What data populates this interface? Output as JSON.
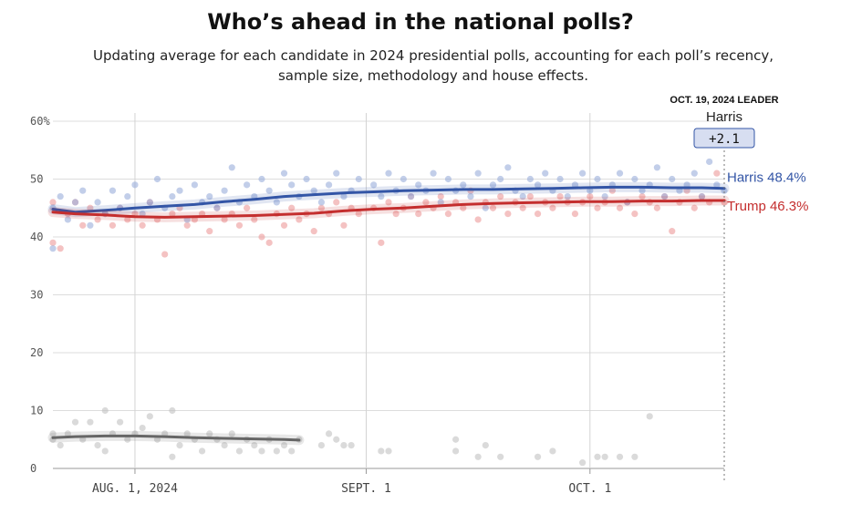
{
  "header": {
    "title": "Who’s ahead in the national polls?",
    "subtitle": "Updating average for each candidate in 2024 presidential polls, accounting for each poll’s recency, sample size, methodology and house effects."
  },
  "colors": {
    "harris": "#3355a6",
    "trump": "#c42e2e",
    "other": "#666666",
    "harris_dot": "#9aaedb",
    "trump_dot": "#ec9a9a",
    "other_dot": "#c2c2c2",
    "grid": "#dddddd",
    "badge_bg": "#d7def1",
    "badge_border": "#3355a6"
  },
  "leader": {
    "date_label": "OCT. 19, 2024 LEADER",
    "name": "Harris",
    "margin": "+2.1"
  },
  "chart_data": {
    "type": "line",
    "title": "Who’s ahead in the national polls?",
    "x_type": "date",
    "x_range": [
      "2024-07-21",
      "2024-10-19"
    ],
    "ylim": [
      0,
      60
    ],
    "y_ticks": [
      0,
      10,
      20,
      30,
      40,
      50,
      60
    ],
    "y_tick_labels": [
      "0",
      "10",
      "20",
      "30",
      "40",
      "50",
      "60%"
    ],
    "x_ticks": [
      {
        "date": "2024-08-01",
        "label": "AUG. 1, 2024"
      },
      {
        "date": "2024-09-01",
        "label": "SEPT. 1"
      },
      {
        "date": "2024-10-01",
        "label": "OCT. 1"
      }
    ],
    "grid": true,
    "legend": "end-labels",
    "series": [
      {
        "name": "Harris",
        "end_label": "Harris 48.4%",
        "color_key": "harris",
        "x": [
          "2024-07-21",
          "2024-07-24",
          "2024-07-28",
          "2024-08-01",
          "2024-08-05",
          "2024-08-09",
          "2024-08-13",
          "2024-08-17",
          "2024-08-21",
          "2024-08-25",
          "2024-08-29",
          "2024-09-02",
          "2024-09-06",
          "2024-09-10",
          "2024-09-14",
          "2024-09-18",
          "2024-09-22",
          "2024-09-26",
          "2024-09-30",
          "2024-10-04",
          "2024-10-08",
          "2024-10-12",
          "2024-10-16",
          "2024-10-19"
        ],
        "values": [
          44.8,
          44.3,
          44.6,
          45.0,
          45.3,
          45.6,
          46.1,
          46.5,
          47.0,
          47.3,
          47.6,
          47.8,
          48.0,
          48.1,
          48.2,
          48.2,
          48.3,
          48.4,
          48.5,
          48.6,
          48.6,
          48.5,
          48.5,
          48.4
        ]
      },
      {
        "name": "Trump",
        "end_label": "Trump 46.3%",
        "color_key": "trump",
        "x": [
          "2024-07-21",
          "2024-07-24",
          "2024-07-28",
          "2024-08-01",
          "2024-08-05",
          "2024-08-09",
          "2024-08-13",
          "2024-08-17",
          "2024-08-21",
          "2024-08-25",
          "2024-08-29",
          "2024-09-02",
          "2024-09-06",
          "2024-09-10",
          "2024-09-14",
          "2024-09-18",
          "2024-09-22",
          "2024-09-26",
          "2024-09-30",
          "2024-10-04",
          "2024-10-08",
          "2024-10-12",
          "2024-10-16",
          "2024-10-19"
        ],
        "values": [
          44.3,
          44.0,
          43.8,
          43.5,
          43.4,
          43.5,
          43.6,
          43.7,
          43.9,
          44.1,
          44.5,
          44.8,
          45.0,
          45.3,
          45.6,
          45.8,
          45.9,
          46.0,
          46.1,
          46.1,
          46.2,
          46.2,
          46.3,
          46.3
        ]
      },
      {
        "name": "Other",
        "color_key": "other",
        "x": [
          "2024-07-21",
          "2024-07-24",
          "2024-07-28",
          "2024-08-01",
          "2024-08-05",
          "2024-08-09",
          "2024-08-13",
          "2024-08-17",
          "2024-08-21",
          "2024-08-23"
        ],
        "values": [
          5.3,
          5.5,
          5.6,
          5.6,
          5.5,
          5.3,
          5.2,
          5.1,
          5.0,
          4.9
        ]
      }
    ],
    "polls": {
      "harris": [
        [
          "2024-07-21",
          45
        ],
        [
          "2024-07-21",
          38
        ],
        [
          "2024-07-22",
          47
        ],
        [
          "2024-07-23",
          43
        ],
        [
          "2024-07-24",
          46
        ],
        [
          "2024-07-25",
          48
        ],
        [
          "2024-07-26",
          42
        ],
        [
          "2024-07-27",
          46
        ],
        [
          "2024-07-28",
          44
        ],
        [
          "2024-07-29",
          48
        ],
        [
          "2024-07-30",
          45
        ],
        [
          "2024-07-31",
          47
        ],
        [
          "2024-08-01",
          49
        ],
        [
          "2024-08-02",
          44
        ],
        [
          "2024-08-03",
          46
        ],
        [
          "2024-08-04",
          50
        ],
        [
          "2024-08-05",
          45
        ],
        [
          "2024-08-06",
          47
        ],
        [
          "2024-08-07",
          48
        ],
        [
          "2024-08-08",
          43
        ],
        [
          "2024-08-09",
          49
        ],
        [
          "2024-08-10",
          46
        ],
        [
          "2024-08-11",
          47
        ],
        [
          "2024-08-12",
          45
        ],
        [
          "2024-08-13",
          48
        ],
        [
          "2024-08-14",
          52
        ],
        [
          "2024-08-15",
          46
        ],
        [
          "2024-08-16",
          49
        ],
        [
          "2024-08-17",
          47
        ],
        [
          "2024-08-18",
          50
        ],
        [
          "2024-08-19",
          48
        ],
        [
          "2024-08-20",
          46
        ],
        [
          "2024-08-21",
          51
        ],
        [
          "2024-08-22",
          49
        ],
        [
          "2024-08-23",
          47
        ],
        [
          "2024-08-24",
          50
        ],
        [
          "2024-08-25",
          48
        ],
        [
          "2024-08-26",
          46
        ],
        [
          "2024-08-27",
          49
        ],
        [
          "2024-08-28",
          51
        ],
        [
          "2024-08-29",
          47
        ],
        [
          "2024-08-30",
          48
        ],
        [
          "2024-08-31",
          50
        ],
        [
          "2024-09-02",
          49
        ],
        [
          "2024-09-03",
          47
        ],
        [
          "2024-09-04",
          51
        ],
        [
          "2024-09-05",
          48
        ],
        [
          "2024-09-06",
          50
        ],
        [
          "2024-09-07",
          47
        ],
        [
          "2024-09-08",
          49
        ],
        [
          "2024-09-09",
          48
        ],
        [
          "2024-09-10",
          51
        ],
        [
          "2024-09-11",
          46
        ],
        [
          "2024-09-12",
          50
        ],
        [
          "2024-09-13",
          48
        ],
        [
          "2024-09-14",
          49
        ],
        [
          "2024-09-15",
          47
        ],
        [
          "2024-09-16",
          51
        ],
        [
          "2024-09-17",
          45
        ],
        [
          "2024-09-18",
          49
        ],
        [
          "2024-09-19",
          50
        ],
        [
          "2024-09-20",
          52
        ],
        [
          "2024-09-21",
          48
        ],
        [
          "2024-09-22",
          47
        ],
        [
          "2024-09-23",
          50
        ],
        [
          "2024-09-24",
          49
        ],
        [
          "2024-09-25",
          51
        ],
        [
          "2024-09-26",
          48
        ],
        [
          "2024-09-27",
          50
        ],
        [
          "2024-09-28",
          47
        ],
        [
          "2024-09-29",
          49
        ],
        [
          "2024-09-30",
          51
        ],
        [
          "2024-10-01",
          48
        ],
        [
          "2024-10-02",
          50
        ],
        [
          "2024-10-03",
          47
        ],
        [
          "2024-10-04",
          49
        ],
        [
          "2024-10-05",
          51
        ],
        [
          "2024-10-06",
          46
        ],
        [
          "2024-10-07",
          50
        ],
        [
          "2024-10-08",
          48
        ],
        [
          "2024-10-09",
          49
        ],
        [
          "2024-10-10",
          52
        ],
        [
          "2024-10-11",
          47
        ],
        [
          "2024-10-12",
          50
        ],
        [
          "2024-10-13",
          48
        ],
        [
          "2024-10-14",
          49
        ],
        [
          "2024-10-15",
          51
        ],
        [
          "2024-10-16",
          47
        ],
        [
          "2024-10-17",
          53
        ],
        [
          "2024-10-18",
          49
        ],
        [
          "2024-10-19",
          48
        ]
      ],
      "trump": [
        [
          "2024-07-21",
          46
        ],
        [
          "2024-07-21",
          39
        ],
        [
          "2024-07-22",
          38
        ],
        [
          "2024-07-23",
          44
        ],
        [
          "2024-07-24",
          46
        ],
        [
          "2024-07-25",
          42
        ],
        [
          "2024-07-26",
          45
        ],
        [
          "2024-07-27",
          43
        ],
        [
          "2024-07-28",
          44
        ],
        [
          "2024-07-29",
          42
        ],
        [
          "2024-07-30",
          45
        ],
        [
          "2024-07-31",
          43
        ],
        [
          "2024-08-01",
          44
        ],
        [
          "2024-08-02",
          42
        ],
        [
          "2024-08-03",
          46
        ],
        [
          "2024-08-04",
          43
        ],
        [
          "2024-08-05",
          37
        ],
        [
          "2024-08-06",
          44
        ],
        [
          "2024-08-07",
          45
        ],
        [
          "2024-08-08",
          42
        ],
        [
          "2024-08-09",
          43
        ],
        [
          "2024-08-10",
          44
        ],
        [
          "2024-08-11",
          41
        ],
        [
          "2024-08-12",
          45
        ],
        [
          "2024-08-13",
          43
        ],
        [
          "2024-08-14",
          44
        ],
        [
          "2024-08-15",
          42
        ],
        [
          "2024-08-16",
          45
        ],
        [
          "2024-08-17",
          43
        ],
        [
          "2024-08-18",
          40
        ],
        [
          "2024-08-19",
          39
        ],
        [
          "2024-08-20",
          44
        ],
        [
          "2024-08-21",
          42
        ],
        [
          "2024-08-22",
          45
        ],
        [
          "2024-08-23",
          43
        ],
        [
          "2024-08-24",
          44
        ],
        [
          "2024-08-25",
          41
        ],
        [
          "2024-08-26",
          45
        ],
        [
          "2024-08-27",
          44
        ],
        [
          "2024-08-28",
          46
        ],
        [
          "2024-08-29",
          42
        ],
        [
          "2024-08-30",
          45
        ],
        [
          "2024-08-31",
          44
        ],
        [
          "2024-09-02",
          45
        ],
        [
          "2024-09-03",
          39
        ],
        [
          "2024-09-04",
          46
        ],
        [
          "2024-09-05",
          44
        ],
        [
          "2024-09-06",
          45
        ],
        [
          "2024-09-07",
          47
        ],
        [
          "2024-09-08",
          44
        ],
        [
          "2024-09-09",
          46
        ],
        [
          "2024-09-10",
          45
        ],
        [
          "2024-09-11",
          47
        ],
        [
          "2024-09-12",
          44
        ],
        [
          "2024-09-13",
          46
        ],
        [
          "2024-09-14",
          45
        ],
        [
          "2024-09-15",
          48
        ],
        [
          "2024-09-16",
          43
        ],
        [
          "2024-09-17",
          46
        ],
        [
          "2024-09-18",
          45
        ],
        [
          "2024-09-19",
          47
        ],
        [
          "2024-09-20",
          44
        ],
        [
          "2024-09-21",
          46
        ],
        [
          "2024-09-22",
          45
        ],
        [
          "2024-09-23",
          47
        ],
        [
          "2024-09-24",
          44
        ],
        [
          "2024-09-25",
          46
        ],
        [
          "2024-09-26",
          45
        ],
        [
          "2024-09-27",
          47
        ],
        [
          "2024-09-28",
          46
        ],
        [
          "2024-09-29",
          44
        ],
        [
          "2024-09-30",
          46
        ],
        [
          "2024-10-01",
          47
        ],
        [
          "2024-10-02",
          45
        ],
        [
          "2024-10-03",
          46
        ],
        [
          "2024-10-04",
          48
        ],
        [
          "2024-10-05",
          45
        ],
        [
          "2024-10-06",
          46
        ],
        [
          "2024-10-07",
          44
        ],
        [
          "2024-10-08",
          47
        ],
        [
          "2024-10-09",
          46
        ],
        [
          "2024-10-10",
          45
        ],
        [
          "2024-10-11",
          47
        ],
        [
          "2024-10-12",
          41
        ],
        [
          "2024-10-13",
          46
        ],
        [
          "2024-10-14",
          48
        ],
        [
          "2024-10-15",
          45
        ],
        [
          "2024-10-16",
          47
        ],
        [
          "2024-10-17",
          46
        ],
        [
          "2024-10-18",
          51
        ],
        [
          "2024-10-19",
          46
        ]
      ],
      "other": [
        [
          "2024-07-21",
          6
        ],
        [
          "2024-07-21",
          5
        ],
        [
          "2024-07-22",
          4
        ],
        [
          "2024-07-23",
          6
        ],
        [
          "2024-07-24",
          8
        ],
        [
          "2024-07-25",
          5
        ],
        [
          "2024-07-26",
          8
        ],
        [
          "2024-07-27",
          4
        ],
        [
          "2024-07-28",
          10
        ],
        [
          "2024-07-28",
          3
        ],
        [
          "2024-07-29",
          6
        ],
        [
          "2024-07-30",
          8
        ],
        [
          "2024-07-31",
          5
        ],
        [
          "2024-08-01",
          6
        ],
        [
          "2024-08-02",
          7
        ],
        [
          "2024-08-03",
          9
        ],
        [
          "2024-08-04",
          5
        ],
        [
          "2024-08-05",
          6
        ],
        [
          "2024-08-06",
          10
        ],
        [
          "2024-08-06",
          2
        ],
        [
          "2024-08-07",
          4
        ],
        [
          "2024-08-08",
          6
        ],
        [
          "2024-08-09",
          5
        ],
        [
          "2024-08-10",
          3
        ],
        [
          "2024-08-11",
          6
        ],
        [
          "2024-08-12",
          5
        ],
        [
          "2024-08-13",
          4
        ],
        [
          "2024-08-14",
          6
        ],
        [
          "2024-08-15",
          3
        ],
        [
          "2024-08-16",
          5
        ],
        [
          "2024-08-17",
          4
        ],
        [
          "2024-08-18",
          3
        ],
        [
          "2024-08-19",
          5
        ],
        [
          "2024-08-20",
          3
        ],
        [
          "2024-08-21",
          4
        ],
        [
          "2024-08-22",
          3
        ],
        [
          "2024-08-23",
          5
        ],
        [
          "2024-08-26",
          4
        ],
        [
          "2024-08-27",
          6
        ],
        [
          "2024-08-28",
          5
        ],
        [
          "2024-08-29",
          4
        ],
        [
          "2024-08-30",
          4
        ],
        [
          "2024-09-03",
          3
        ],
        [
          "2024-09-04",
          3
        ],
        [
          "2024-09-13",
          5
        ],
        [
          "2024-09-13",
          3
        ],
        [
          "2024-09-16",
          2
        ],
        [
          "2024-09-17",
          4
        ],
        [
          "2024-09-19",
          2
        ],
        [
          "2024-09-24",
          2
        ],
        [
          "2024-09-26",
          3
        ],
        [
          "2024-09-30",
          1
        ],
        [
          "2024-10-02",
          2
        ],
        [
          "2024-10-03",
          2
        ],
        [
          "2024-10-05",
          2
        ],
        [
          "2024-10-07",
          2
        ],
        [
          "2024-10-09",
          9
        ]
      ]
    }
  }
}
